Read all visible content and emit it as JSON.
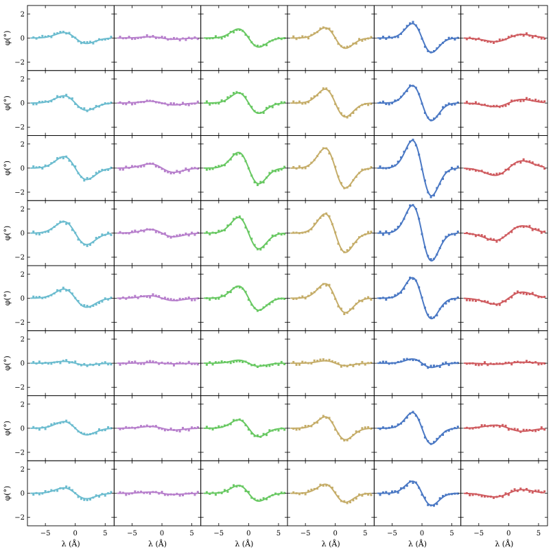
{
  "chart_data": {
    "type": "line",
    "layout": "small-multiples grid",
    "rows": 8,
    "cols": 6,
    "xlabel": "λ (Å)",
    "ylabel": "φ(°)",
    "xlim": [
      -8,
      6.5
    ],
    "ylim": [
      -2.7,
      2.7
    ],
    "xticks": [
      -5,
      0,
      5
    ],
    "xtick_labels": [
      "−5",
      "0",
      "5"
    ],
    "yticks": [
      -2,
      0,
      2
    ],
    "ytick_labels": [
      "−2",
      "0",
      "2"
    ],
    "grid": false,
    "legend": "none",
    "column_colors": [
      "#6bbccf",
      "#b77fcc",
      "#68c862",
      "#c5ad69",
      "#4a78c4",
      "#cf5b5f"
    ],
    "model": "phi(lambda) = A * (lambda / s) * exp(0.5 - lambda^2 / (2 s^2)); A = peak amplitude in degrees, negative A = peak at positive lambda",
    "widths": [
      1.9,
      2.0,
      1.7,
      1.7,
      1.6,
      2.3
    ],
    "amplitudes": [
      [
        -0.45,
        -0.1,
        -0.75,
        -0.85,
        -1.2,
        0.3
      ],
      [
        -0.6,
        -0.15,
        -0.85,
        -1.15,
        -1.45,
        0.3
      ],
      [
        -0.95,
        -0.35,
        -1.3,
        -1.65,
        -2.3,
        0.6
      ],
      [
        -0.95,
        -0.3,
        -1.3,
        -1.6,
        -2.3,
        0.6
      ],
      [
        -0.75,
        -0.2,
        -1.0,
        -1.2,
        -1.7,
        0.5
      ],
      [
        -0.15,
        -0.05,
        -0.25,
        -0.2,
        -0.35,
        0.08
      ],
      [
        -0.55,
        -0.15,
        -0.7,
        -0.95,
        -1.3,
        -0.25
      ],
      [
        -0.45,
        -0.1,
        -0.65,
        -0.75,
        -1.0,
        0.3
      ]
    ],
    "points_lambda": [
      -7,
      -6.5,
      -6,
      -5.5,
      -5,
      -4.5,
      -4,
      -3.5,
      -3,
      -2.5,
      -2,
      -1.5,
      -1,
      -0.5,
      0,
      0.5,
      1,
      1.5,
      2,
      2.5,
      3,
      3.5,
      4,
      4.5,
      5,
      5.5,
      6
    ]
  }
}
